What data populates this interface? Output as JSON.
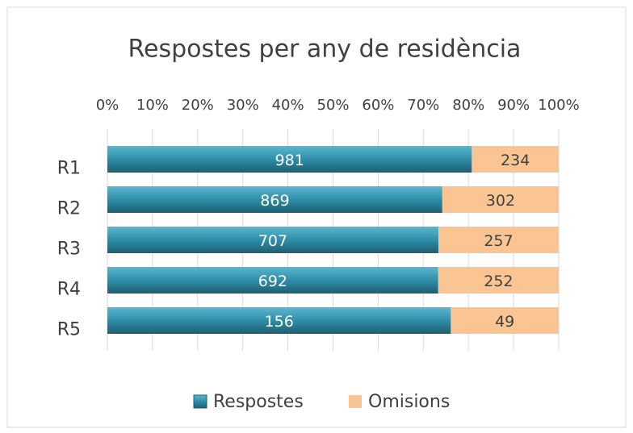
{
  "chart_data": {
    "type": "bar",
    "orientation": "horizontal",
    "stacked": "percent",
    "title": "Respostes per any de residència",
    "categories": [
      "R1",
      "R2",
      "R3",
      "R4",
      "R5"
    ],
    "series": [
      {
        "name": "Respostes",
        "color": "#2f8ea8",
        "values": [
          981,
          869,
          707,
          692,
          156
        ]
      },
      {
        "name": "Omisions",
        "color": "#fbc593",
        "values": [
          234,
          302,
          257,
          252,
          49
        ]
      }
    ],
    "xlim": [
      0,
      100
    ],
    "xticks": [
      {
        "value": 0,
        "label": "0%"
      },
      {
        "value": 10,
        "label": "10%"
      },
      {
        "value": 20,
        "label": "20%"
      },
      {
        "value": 30,
        "label": "30%"
      },
      {
        "value": 40,
        "label": "40%"
      },
      {
        "value": 50,
        "label": "50%"
      },
      {
        "value": 60,
        "label": "60%"
      },
      {
        "value": 70,
        "label": "70%"
      },
      {
        "value": 80,
        "label": "80%"
      },
      {
        "value": 90,
        "label": "90%"
      },
      {
        "value": 100,
        "label": "100%"
      }
    ],
    "grid": true,
    "legend": "bottom"
  }
}
